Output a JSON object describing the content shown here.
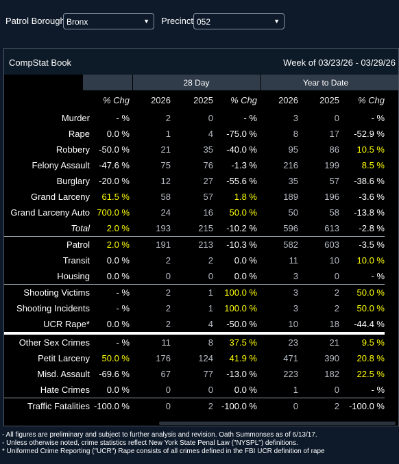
{
  "filters": {
    "borough_label": "Patrol Borough:",
    "borough_value": "Bronx",
    "precinct_label": "Precinct:",
    "precinct_value": "052"
  },
  "card": {
    "title": "CompStat Book",
    "week": "Week of 03/23/26 - 03/29/26"
  },
  "groups": {
    "g28": "28 Day",
    "ytd": "Year to Date"
  },
  "headers": {
    "c1": "% Chg",
    "c2": "2026",
    "c3": "2025",
    "c4": "% Chg",
    "c5": "2026",
    "c6": "2025",
    "c7": "% Chg"
  },
  "rows": [
    {
      "cat": "Murder",
      "wk": "- %",
      "d26": "2",
      "d25": "0",
      "dchg": "- %",
      "y26": "3",
      "y25": "0",
      "ychg": "- %"
    },
    {
      "cat": "Rape",
      "wk": "0.0 %",
      "d26": "1",
      "d25": "4",
      "dchg": "-75.0 %",
      "y26": "8",
      "y25": "17",
      "ychg": "-52.9 %"
    },
    {
      "cat": "Robbery",
      "wk": "-50.0 %",
      "d26": "21",
      "d25": "35",
      "dchg": "-40.0 %",
      "y26": "95",
      "y25": "86",
      "ychg": "10.5 %"
    },
    {
      "cat": "Felony Assault",
      "wk": "-47.6 %",
      "d26": "75",
      "d25": "76",
      "dchg": "-1.3 %",
      "y26": "216",
      "y25": "199",
      "ychg": "8.5 %"
    },
    {
      "cat": "Burglary",
      "wk": "-20.0 %",
      "d26": "12",
      "d25": "27",
      "dchg": "-55.6 %",
      "y26": "35",
      "y25": "57",
      "ychg": "-38.6 %"
    },
    {
      "cat": "Grand Larceny",
      "wk": "61.5 %",
      "d26": "58",
      "d25": "57",
      "dchg": "1.8 %",
      "y26": "189",
      "y25": "196",
      "ychg": "-3.6 %"
    },
    {
      "cat": "Grand Larceny Auto",
      "wk": "700.0 %",
      "d26": "24",
      "d25": "16",
      "dchg": "50.0 %",
      "y26": "50",
      "y25": "58",
      "ychg": "-13.8 %"
    },
    {
      "cat": "Total",
      "wk": "2.0 %",
      "d26": "193",
      "d25": "215",
      "dchg": "-10.2 %",
      "y26": "596",
      "y25": "613",
      "ychg": "-2.8 %"
    },
    {
      "cat": "Patrol",
      "wk": "2.0 %",
      "d26": "191",
      "d25": "213",
      "dchg": "-10.3 %",
      "y26": "582",
      "y25": "603",
      "ychg": "-3.5 %"
    },
    {
      "cat": "Transit",
      "wk": "0.0 %",
      "d26": "2",
      "d25": "2",
      "dchg": "0.0 %",
      "y26": "11",
      "y25": "10",
      "ychg": "10.0 %"
    },
    {
      "cat": "Housing",
      "wk": "0.0 %",
      "d26": "0",
      "d25": "0",
      "dchg": "0.0 %",
      "y26": "3",
      "y25": "0",
      "ychg": "- %"
    },
    {
      "cat": "Shooting Victims",
      "wk": "- %",
      "d26": "2",
      "d25": "1",
      "dchg": "100.0 %",
      "y26": "3",
      "y25": "2",
      "ychg": "50.0 %"
    },
    {
      "cat": "Shooting Incidents",
      "wk": "- %",
      "d26": "2",
      "d25": "1",
      "dchg": "100.0 %",
      "y26": "3",
      "y25": "2",
      "ychg": "50.0 %"
    },
    {
      "cat": "UCR Rape*",
      "wk": "0.0 %",
      "d26": "2",
      "d25": "4",
      "dchg": "-50.0 %",
      "y26": "10",
      "y25": "18",
      "ychg": "-44.4 %"
    },
    {
      "cat": "Other Sex Crimes",
      "wk": "- %",
      "d26": "11",
      "d25": "8",
      "dchg": "37.5 %",
      "y26": "23",
      "y25": "21",
      "ychg": "9.5 %"
    },
    {
      "cat": "Petit Larceny",
      "wk": "50.0 %",
      "d26": "176",
      "d25": "124",
      "dchg": "41.9 %",
      "y26": "471",
      "y25": "390",
      "ychg": "20.8 %"
    },
    {
      "cat": "Misd. Assault",
      "wk": "-69.6 %",
      "d26": "67",
      "d25": "77",
      "dchg": "-13.0 %",
      "y26": "223",
      "y25": "182",
      "ychg": "22.5 %"
    },
    {
      "cat": "Hate Crimes",
      "wk": "0.0 %",
      "d26": "0",
      "d25": "0",
      "dchg": "0.0 %",
      "y26": "1",
      "y25": "0",
      "ychg": "- %"
    },
    {
      "cat": "Traffic Fatalities",
      "wk": "-100.0 %",
      "d26": "0",
      "d25": "2",
      "dchg": "-100.0 %",
      "y26": "0",
      "y25": "2",
      "ychg": "-100.0 %"
    }
  ],
  "footer": {
    "line1": "- All figures are preliminary and subject to further analysis and revision. Oath Summonses as of 6/13/17.",
    "line2": "- Unless otherwise noted, crime statistics reflect New York State Penal Law (\"NYSPL\") definitions.",
    "line3": "* Uniformed Crime Reporting (\"UCR\") Rape consists of all crimes defined in the FBI UCR definition of rape"
  },
  "colors": {
    "highlight": "#ffff00",
    "background": "#0e1a2a",
    "group_header": "#313c4a"
  }
}
